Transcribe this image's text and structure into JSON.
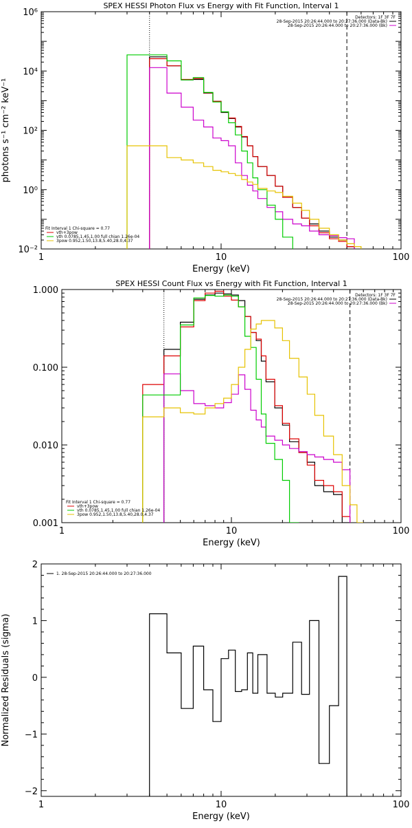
{
  "chart_data": [
    {
      "type": "line",
      "step": true,
      "title": "SPEX HESSI Photon Flux vs Energy with Fit Function, Interval 1",
      "xlabel": "Energy (keV)",
      "ylabel": "photons s⁻¹ cm⁻² keV⁻¹",
      "xscale": "log",
      "yscale": "log",
      "xlim": [
        1,
        100
      ],
      "ylim": [
        0.01,
        1000000
      ],
      "xticks": [
        {
          "v": 1,
          "label": "1"
        },
        {
          "v": 10,
          "label": "10"
        },
        {
          "v": 100,
          "label": "100"
        }
      ],
      "yticks": [
        {
          "v": 0.01,
          "label": "10⁻²"
        },
        {
          "v": 1,
          "label": "10⁰"
        },
        {
          "v": 100,
          "label": "10²"
        },
        {
          "v": 10000,
          "label": "10⁴"
        },
        {
          "v": 1000000,
          "label": "10⁶"
        }
      ],
      "vlines": [
        {
          "x": 4,
          "style": "dotted"
        },
        {
          "x": 50,
          "style": "dashed"
        }
      ],
      "edges": [
        3,
        4,
        5,
        6,
        7,
        8,
        9,
        10,
        11,
        12,
        13,
        14,
        15,
        16,
        18,
        20,
        22,
        25,
        28,
        31,
        35,
        40,
        45,
        50,
        55,
        60
      ],
      "legend_right": {
        "position": "top-right",
        "header": "Detectors: 1F 3F 7F",
        "entries": [
          {
            "text": "28-Sep-2015 20:26:44.000 to 20:27:36.000 (Data-Bk)",
            "color": "#000000"
          },
          {
            "text": "28-Sep-2015 20:26:44.000 to 20:27:36.000 (Bk)",
            "color": "#cc00cc"
          }
        ]
      },
      "legend_left": {
        "position": "bottom-left",
        "header": "Fit Interval 1   Chi-square = 0.77",
        "entries": [
          {
            "text": "vth+3pow",
            "color": "#dd0000"
          },
          {
            "text": "vth 0.0785,1.45,1.00  full chian 1.26e-04",
            "color": "#00cc00"
          },
          {
            "text": "3pow 0.952,1.50,13.8,5.40,28.0,4.37",
            "color": "#e6c200"
          }
        ]
      },
      "series": [
        {
          "color": "#000000",
          "values": [
            null,
            30000,
            15000,
            5000,
            5200,
            1800,
            950,
            400,
            250,
            130,
            60,
            30,
            13,
            6,
            3,
            1.3,
            0.55,
            0.25,
            0.11,
            0.07,
            0.04,
            0.025,
            0.02,
            0.012,
            null
          ]
        },
        {
          "color": "#dd0000",
          "values": [
            null,
            26000,
            15000,
            5200,
            5600,
            1850,
            950,
            420,
            260,
            135,
            62,
            30,
            13,
            6,
            3,
            1.3,
            0.55,
            0.25,
            0.11,
            0.06,
            0.035,
            0.022,
            0.018,
            0.012,
            null
          ]
        },
        {
          "color": "#cc00cc",
          "values": [
            null,
            13000,
            1800,
            600,
            220,
            130,
            55,
            45,
            30,
            8,
            3,
            1.4,
            0.9,
            0.5,
            0.25,
            0.18,
            0.1,
            0.07,
            0.06,
            0.04,
            0.03,
            0.028,
            0.024,
            0.022,
            null
          ]
        },
        {
          "color": "#00cc00",
          "values": [
            35000,
            35000,
            22000,
            5000,
            6000,
            1900,
            900,
            420,
            180,
            70,
            20,
            8,
            2.5,
            1,
            0.3,
            0.1,
            0.025,
            null,
            null,
            null,
            null,
            null,
            null,
            null,
            null
          ]
        },
        {
          "color": "#e6c200",
          "values": [
            30,
            30,
            12,
            10,
            8,
            6,
            4.5,
            4,
            3.5,
            3,
            2.2,
            1.8,
            1.5,
            1.1,
            0.9,
            0.8,
            0.6,
            0.35,
            0.2,
            0.1,
            0.05,
            0.03,
            0.02,
            0.015,
            0.012
          ]
        }
      ]
    },
    {
      "type": "line",
      "step": true,
      "title": "SPEX HESSI Count Flux vs Energy with Fit Function, Interval 1",
      "xlabel": "Energy (keV)",
      "ylabel": "",
      "xscale": "log",
      "yscale": "log",
      "xlim": [
        1,
        100
      ],
      "ylim": [
        0.001,
        1
      ],
      "xticks": [
        {
          "v": 1,
          "label": "1"
        },
        {
          "v": 10,
          "label": "10"
        },
        {
          "v": 100,
          "label": "100"
        }
      ],
      "yticks": [
        {
          "v": 0.001,
          "label": "0.001"
        },
        {
          "v": 0.01,
          "label": "0.010"
        },
        {
          "v": 0.1,
          "label": "0.100"
        },
        {
          "v": 1,
          "label": "1.000"
        }
      ],
      "vlines": [
        {
          "x": 4,
          "style": "dotted"
        },
        {
          "x": 50,
          "style": "dashed"
        }
      ],
      "edges": [
        3,
        4,
        5,
        6,
        7,
        8,
        9,
        10,
        11,
        12,
        13,
        14,
        15,
        16,
        18,
        20,
        22,
        25,
        28,
        31,
        35,
        40,
        45,
        50,
        55,
        60
      ],
      "legend_right": {
        "position": "top-right",
        "header": "Detectors: 1F 3F 7F",
        "entries": [
          {
            "text": "28-Sep-2015 20:26:44.000 to 20:27:36.000 (Data-Bk)",
            "color": "#000000"
          },
          {
            "text": "28-Sep-2015 20:26:44.000 to 20:27:36.000 (Bk)",
            "color": "#cc00cc"
          }
        ]
      },
      "legend_left": {
        "position": "bottom-left",
        "header": "Fit Interval 1   Chi-square = 0.77",
        "entries": [
          {
            "text": "vth+3pow",
            "color": "#dd0000"
          },
          {
            "text": "vth 0.0785,1.45,1.00  full chian 1.26e-04",
            "color": "#00cc00"
          },
          {
            "text": "3pow 0.952,1.50,13.8,5.40,28.0,4.37",
            "color": "#e6c200"
          }
        ]
      },
      "series": [
        {
          "color": "#000000",
          "values": [
            null,
            0.17,
            0.38,
            0.75,
            0.85,
            0.9,
            0.88,
            0.85,
            0.72,
            0.45,
            0.28,
            0.22,
            0.12,
            0.065,
            0.03,
            0.018,
            0.011,
            0.008,
            0.006,
            0.003,
            0.0025,
            0.0023,
            0.001,
            null,
            null
          ]
        },
        {
          "color": "#dd0000",
          "values": [
            0.06,
            0.14,
            0.33,
            0.72,
            0.9,
            0.95,
            0.82,
            0.73,
            0.6,
            0.45,
            0.28,
            0.23,
            0.14,
            0.07,
            0.032,
            0.019,
            0.012,
            0.008,
            0.0055,
            0.0035,
            0.003,
            0.0025,
            0.0012,
            null,
            null
          ]
        },
        {
          "color": "#cc00cc",
          "values": [
            null,
            0.082,
            0.05,
            0.034,
            0.032,
            0.03,
            0.035,
            0.045,
            0.08,
            0.052,
            0.028,
            0.021,
            0.017,
            0.013,
            0.0115,
            0.01,
            0.009,
            0.0082,
            0.0075,
            0.007,
            0.0065,
            0.006,
            0.0048,
            null,
            null
          ]
        },
        {
          "color": "#00cc00",
          "values": [
            0.044,
            0.044,
            0.35,
            0.78,
            0.84,
            0.82,
            0.85,
            0.82,
            0.6,
            0.25,
            0.18,
            0.07,
            0.025,
            0.0105,
            0.0065,
            0.0035,
            0.001,
            null,
            null,
            null,
            null,
            null,
            null,
            null,
            null
          ]
        },
        {
          "color": "#e6c200",
          "values": [
            0.023,
            0.03,
            0.026,
            0.025,
            0.03,
            0.034,
            0.04,
            0.06,
            0.1,
            0.17,
            0.31,
            0.36,
            0.4,
            0.4,
            0.32,
            0.22,
            0.13,
            0.075,
            0.045,
            0.024,
            0.013,
            0.0075,
            0.003,
            0.0017,
            0.001
          ]
        }
      ]
    },
    {
      "type": "line",
      "step": true,
      "title": "",
      "xlabel": "Energy (keV)",
      "ylabel": "Normalized Residuals (sigma)",
      "xscale": "log",
      "yscale": "linear",
      "xlim": [
        1,
        100
      ],
      "ylim": [
        -2.1,
        2
      ],
      "xticks": [
        {
          "v": 1,
          "label": "1"
        },
        {
          "v": 10,
          "label": "10"
        },
        {
          "v": 100,
          "label": "100"
        }
      ],
      "yticks": [
        {
          "v": -2,
          "label": "−2"
        },
        {
          "v": -1,
          "label": "−1"
        },
        {
          "v": 0,
          "label": "0"
        },
        {
          "v": 1,
          "label": "1"
        },
        {
          "v": 2,
          "label": "2"
        }
      ],
      "vlines": [],
      "edges": [
        4,
        5,
        6,
        7,
        8,
        9,
        10,
        11,
        12,
        13,
        14,
        15,
        16,
        18,
        20,
        22,
        25,
        28,
        31,
        35,
        40,
        45,
        50
      ],
      "drop_to_bottom": true,
      "legend_right": null,
      "legend_left": {
        "position": "top-left",
        "header": "",
        "entries": [
          {
            "text": "1. 28-Sep-2015 20:26:44.000 to 20:27:36.000",
            "color": "#000000"
          }
        ]
      },
      "series": [
        {
          "color": "#000000",
          "values": [
            1.12,
            0.43,
            -0.55,
            0.55,
            -0.22,
            -0.78,
            0.33,
            0.48,
            -0.25,
            -0.22,
            0.43,
            -0.28,
            0.4,
            -0.28,
            -0.35,
            -0.28,
            0.62,
            -0.3,
            1.0,
            -1.52,
            -0.5,
            1.78
          ]
        }
      ]
    }
  ]
}
